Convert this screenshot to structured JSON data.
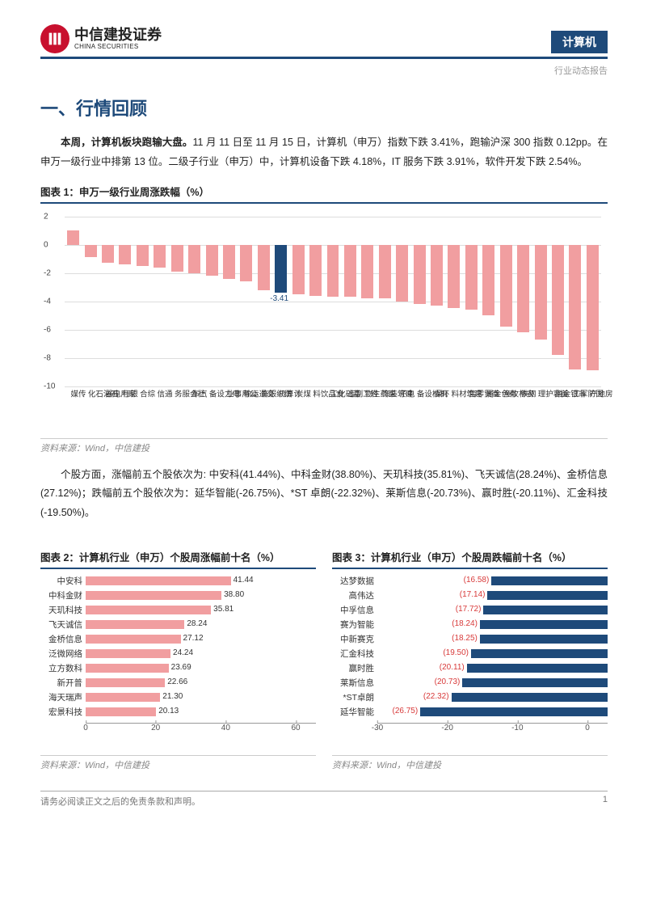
{
  "header": {
    "logo_cn": "中信建投证券",
    "logo_en": "CHINA SECURITIES",
    "category": "计算机",
    "subtitle": "行业动态报告"
  },
  "section_title": "一、行情回顾",
  "para1_prefix": "本周，计算机板块跑输大盘。",
  "para1_body": "11 月 11 日至 11 月 15 日，计算机（申万）指数下跌 3.41%，跑输沪深 300 指数 0.12pp。在申万一级行业中排第 13 位。二级子行业（申万）中，计算机设备下跌 4.18%，IT 服务下跌 3.91%，软件开发下跌 2.54%。",
  "chart1": {
    "title": "图表 1：申万一级行业周涨跌幅（%）",
    "type": "bar",
    "categories": [
      "传媒",
      "石油石化",
      "家用电器",
      "银行",
      "综合",
      "通信",
      "社会服务",
      "汽车",
      "电力设备",
      "公用事业",
      "交通运输",
      "纺织服饰",
      "计算机",
      "煤炭",
      "食品饮料",
      "基础化工",
      "轻工制造",
      "医药生物",
      "建筑装饰",
      "电子",
      "机械设备",
      "环保",
      "建筑材料",
      "商贸零售",
      "有色金属",
      "农林牧渔",
      "钢铁",
      "美容护理",
      "非银金融",
      "国防军工",
      "房地产"
    ],
    "values": [
      1.0,
      -0.9,
      -1.3,
      -1.4,
      -1.5,
      -1.6,
      -1.9,
      -2.0,
      -2.2,
      -2.4,
      -2.6,
      -3.2,
      -3.41,
      -3.5,
      -3.6,
      -3.7,
      -3.7,
      -3.8,
      -3.8,
      -4.0,
      -4.2,
      -4.3,
      -4.5,
      -4.6,
      -5.0,
      -5.8,
      -6.2,
      -6.7,
      -7.8,
      -8.8,
      -8.9
    ],
    "highlight_index": 12,
    "highlight_value_label": "-3.41",
    "bar_color": "#f19ea0",
    "highlight_color": "#1e4a7a",
    "ylim": [
      -10,
      2
    ],
    "ytick_step": 2,
    "grid_color": "#dddddd",
    "label_fontsize": 10
  },
  "chart1_source": "资料来源：Wind，中信建投",
  "para2": "个股方面，涨幅前五个股依次为: 中安科(41.44%)、中科金财(38.80%)、天玑科技(35.81%)、飞天诚信(28.24%)、金桥信息(27.12%)；跌幅前五个股依次为：延华智能(-26.75%)、*ST 卓朗(-22.32%)、莱斯信息(-20.73%)、赢时胜(-20.11%)、汇金科技(-19.50%)。",
  "chart2": {
    "title": "图表 2：计算机行业（申万）个股周涨幅前十名（%）",
    "type": "hbar",
    "labels": [
      "中安科",
      "中科金财",
      "天玑科技",
      "飞天诚信",
      "金桥信息",
      "泛微网络",
      "立方数科",
      "新开普",
      "海天瑞声",
      "宏景科技"
    ],
    "values": [
      41.44,
      38.8,
      35.81,
      28.24,
      27.12,
      24.24,
      23.69,
      22.66,
      21.3,
      20.13
    ],
    "bar_color": "#f19ea0",
    "value_color": "#333333",
    "xlim": [
      0,
      60
    ],
    "xticks": [
      0,
      20,
      40,
      60
    ]
  },
  "chart2_source": "资料来源：Wind，中信建投",
  "chart3": {
    "title": "图表 3：计算机行业（申万）个股周跌幅前十名（%）",
    "type": "hbar",
    "labels": [
      "达梦数据",
      "高伟达",
      "中孚信息",
      "赛为智能",
      "中新赛克",
      "汇金科技",
      "赢时胜",
      "莱斯信息",
      "*ST卓朗",
      "延华智能"
    ],
    "values": [
      -16.58,
      -17.14,
      -17.72,
      -18.24,
      -18.25,
      -19.5,
      -20.11,
      -20.73,
      -22.32,
      -26.75
    ],
    "value_labels": [
      "(16.58)",
      "(17.14)",
      "(17.72)",
      "(18.24)",
      "(18.25)",
      "(19.50)",
      "(20.11)",
      "(20.73)",
      "(22.32)",
      "(26.75)"
    ],
    "bar_color": "#1e4a7a",
    "value_color": "#d83a3a",
    "xlim": [
      -30,
      0
    ],
    "xticks": [
      -30,
      -20,
      -10,
      0
    ]
  },
  "chart3_source": "资料来源：Wind，中信建投",
  "footer": {
    "disclaimer": "请务必阅读正文之后的免责条款和声明。",
    "page_num": "1"
  }
}
